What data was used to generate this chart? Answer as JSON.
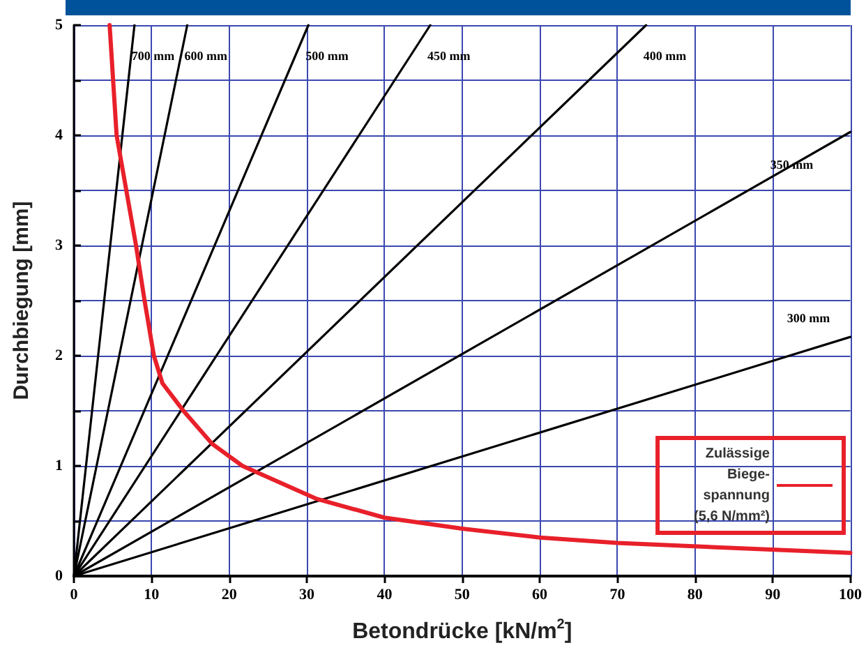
{
  "chart_data": {
    "type": "line",
    "xlabel": "Betondrücke [kN/m$^{2}$]",
    "ylabel": "Durchbiegung [mm]",
    "xlim": [
      0,
      100
    ],
    "xticks": [
      0,
      10,
      20,
      30,
      40,
      50,
      60,
      70,
      80,
      90,
      100
    ],
    "ylim": [
      0,
      5
    ],
    "yticks": [
      0,
      {
        "value": 0.5,
        "label": null
      },
      1,
      {
        "value": 1.5,
        "label": null
      },
      2,
      {
        "value": 2.5,
        "label": null
      },
      3,
      {
        "value": 3.5,
        "label": null
      },
      4,
      {
        "value": 4.5,
        "label": null
      },
      5
    ],
    "grid": true,
    "legend": "bottom right",
    "marker": "none",
    "line_style": "solid",
    "series": [
      {
        "name": "700 mm",
        "color": "#000000",
        "x": [
          0,
          7.8
        ],
        "values": [
          0,
          5
        ]
      },
      {
        "name": "600 mm",
        "color": "#000000",
        "x": [
          0,
          14.6
        ],
        "values": [
          0,
          5
        ]
      },
      {
        "name": "500 mm",
        "color": "#000000",
        "x": [
          0,
          30.2
        ],
        "values": [
          0,
          5
        ]
      },
      {
        "name": "450 mm",
        "color": "#000000",
        "x": [
          0,
          45.9
        ],
        "values": [
          0,
          5
        ]
      },
      {
        "name": "400 mm",
        "color": "#000000",
        "x": [
          0,
          73.7
        ],
        "values": [
          0,
          5
        ]
      },
      {
        "name": "350 mm",
        "color": "#000000",
        "x": [
          0,
          100
        ],
        "values": [
          0,
          4.03
        ]
      },
      {
        "name": "300 mm",
        "color": "#000000",
        "x": [
          0,
          100
        ],
        "values": [
          0,
          2.17
        ]
      },
      {
        "name": "Zulässige\nBiege-\nspannung\n(5,6 N/mm²)",
        "color": "#e8202a",
        "x": [
          4.6,
          5.5,
          8.0,
          9.1,
          10.3,
          11.4,
          14.1,
          17.8,
          21.7,
          31.3,
          40,
          50,
          60,
          70,
          100
        ],
        "values": [
          5,
          4,
          3,
          2.5,
          2,
          1.75,
          1.5,
          1.2,
          1,
          0.7,
          0.53,
          0.43,
          0.35,
          0.3,
          0.21
        ]
      }
    ]
  }
}
